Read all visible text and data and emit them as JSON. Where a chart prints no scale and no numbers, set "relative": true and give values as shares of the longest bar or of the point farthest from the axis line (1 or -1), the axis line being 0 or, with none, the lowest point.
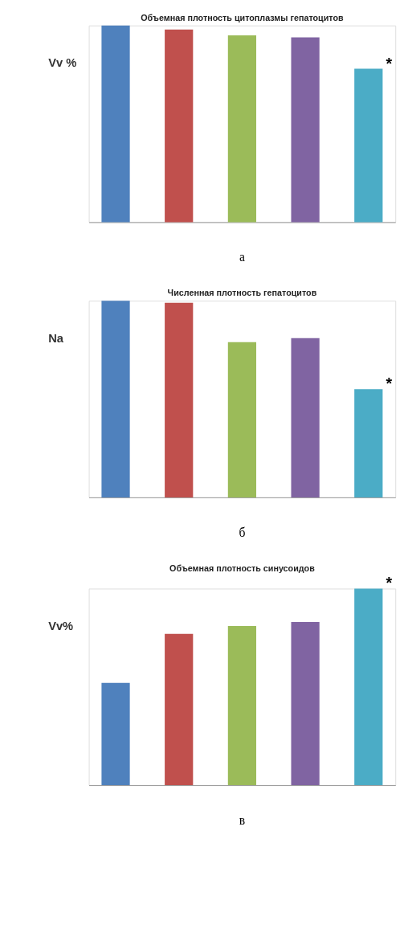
{
  "chart_data": [
    {
      "type": "bar",
      "title": "Объемная плотность цитоплазмы гепатоцитов",
      "ylabel": "Vv %",
      "relative": true,
      "categories": [
        null,
        null,
        null,
        null,
        null
      ],
      "values": [
        1,
        0.98,
        0.95,
        0.94,
        0.78
      ],
      "colors": [
        "#4f81bd",
        "#c0504d",
        "#9bbb59",
        "#8064a2",
        "#4bacc6"
      ],
      "annotations": [
        "*",
        "а"
      ],
      "grid": false,
      "legend": false
    },
    {
      "type": "bar",
      "title": "Численная плотность гепатоцитов",
      "ylabel": "Na",
      "relative": true,
      "categories": [
        null,
        null,
        null,
        null,
        null
      ],
      "values": [
        1,
        0.99,
        0.79,
        0.81,
        0.55
      ],
      "colors": [
        "#4f81bd",
        "#c0504d",
        "#9bbb59",
        "#8064a2",
        "#4bacc6"
      ],
      "annotations": [
        "*",
        "б"
      ],
      "grid": false,
      "legend": false
    },
    {
      "type": "bar",
      "title": "Объемная плотность синусоидов",
      "ylabel": "Vv%",
      "relative": true,
      "categories": [
        null,
        null,
        null,
        null,
        null
      ],
      "values": [
        0.52,
        0.77,
        0.81,
        0.83,
        1
      ],
      "colors": [
        "#4f81bd",
        "#c0504d",
        "#9bbb59",
        "#8064a2",
        "#4bacc6"
      ],
      "annotations": [
        "*",
        "в"
      ],
      "grid": false,
      "legend": false
    }
  ]
}
